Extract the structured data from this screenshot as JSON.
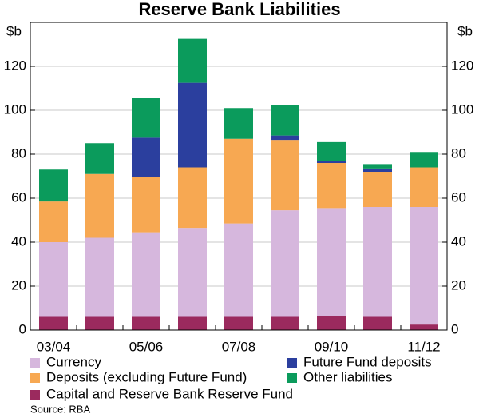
{
  "chart_data": {
    "type": "stacked_bar",
    "title": "Reserve Bank Liabilities",
    "y_label": "$b",
    "categories": [
      "03/04",
      null,
      "05/06",
      null,
      "07/08",
      null,
      "09/10",
      null,
      "11/12"
    ],
    "series": [
      {
        "name": "Capital and Reserve Bank Reserve Fund",
        "color": "#9b2a5e",
        "values": [
          6,
          6,
          6,
          6,
          6,
          6,
          6.5,
          6,
          2.5
        ]
      },
      {
        "name": "Currency",
        "color": "#d6b7dd",
        "values": [
          34,
          36,
          38.5,
          40.5,
          42.5,
          48.5,
          49,
          50,
          53.5
        ]
      },
      {
        "name": "Deposits (excluding Future Fund)",
        "color": "#f7a852",
        "values": [
          18.5,
          29,
          25,
          27.5,
          38.5,
          32,
          20.5,
          16,
          18
        ]
      },
      {
        "name": "Future Fund deposits",
        "color": "#2b3f9e",
        "values": [
          0,
          0,
          18,
          38.5,
          0,
          2,
          1,
          1.5,
          0
        ]
      },
      {
        "name": "Other liabilities",
        "color": "#0b9b5c",
        "values": [
          14.5,
          14,
          18,
          20,
          14,
          14,
          8.5,
          2,
          7
        ]
      }
    ],
    "ylim": [
      0,
      140
    ],
    "yticks": [
      0,
      20,
      40,
      60,
      80,
      100,
      120
    ],
    "grid": true,
    "source": "Source: RBA"
  }
}
